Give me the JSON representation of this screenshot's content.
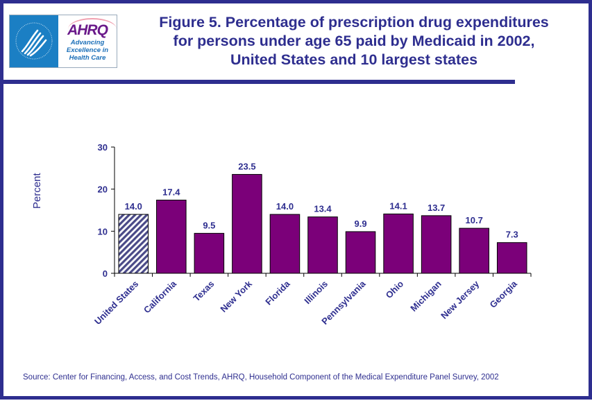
{
  "logo": {
    "hhs_icon": "hhs-eagle-icon",
    "ahrq_mark": "AHRQ",
    "ahrq_tagline": [
      "Advancing",
      "Excellence in",
      "Health Care"
    ]
  },
  "colors": {
    "frame": "#2e2e8f",
    "bar_fill": "#7b0079",
    "us_hatch_dark": "#3a3a7a",
    "us_hatch_light": "#ffffff",
    "text": "#2e2e8f"
  },
  "chart_data": {
    "type": "bar",
    "title": "Figure 5. Percentage of prescription drug expenditures for persons under age 65 paid by Medicaid in 2002, United States and 10 largest states",
    "title_lines": [
      "Figure 5. Percentage of prescription drug expenditures",
      "for persons under age 65 paid by Medicaid in 2002,",
      "United States and 10 largest states"
    ],
    "xlabel": "",
    "ylabel": "Percent",
    "ylim": [
      0,
      30
    ],
    "yticks": [
      0,
      10,
      20,
      30
    ],
    "grid": false,
    "legend": "none",
    "categories": [
      "United States",
      "California",
      "Texas",
      "New York",
      "Florida",
      "Illinois",
      "Pennsylvania",
      "Ohio",
      "Michigan",
      "New Jersey",
      "Georgia"
    ],
    "values": [
      14.0,
      17.4,
      9.5,
      23.5,
      14.0,
      13.4,
      9.9,
      14.1,
      13.7,
      10.7,
      7.3
    ],
    "data_labels": [
      "14.0",
      "17.4",
      "9.5",
      "23.5",
      "14.0",
      "13.4",
      "9.9",
      "14.1",
      "13.7",
      "10.7",
      "7.3"
    ],
    "highlight_category": "United States",
    "highlight_style": "hatched"
  },
  "source": "Source: Center for Financing, Access, and Cost Trends, AHRQ, Household Component of the Medical Expenditure Panel Survey, 2002"
}
